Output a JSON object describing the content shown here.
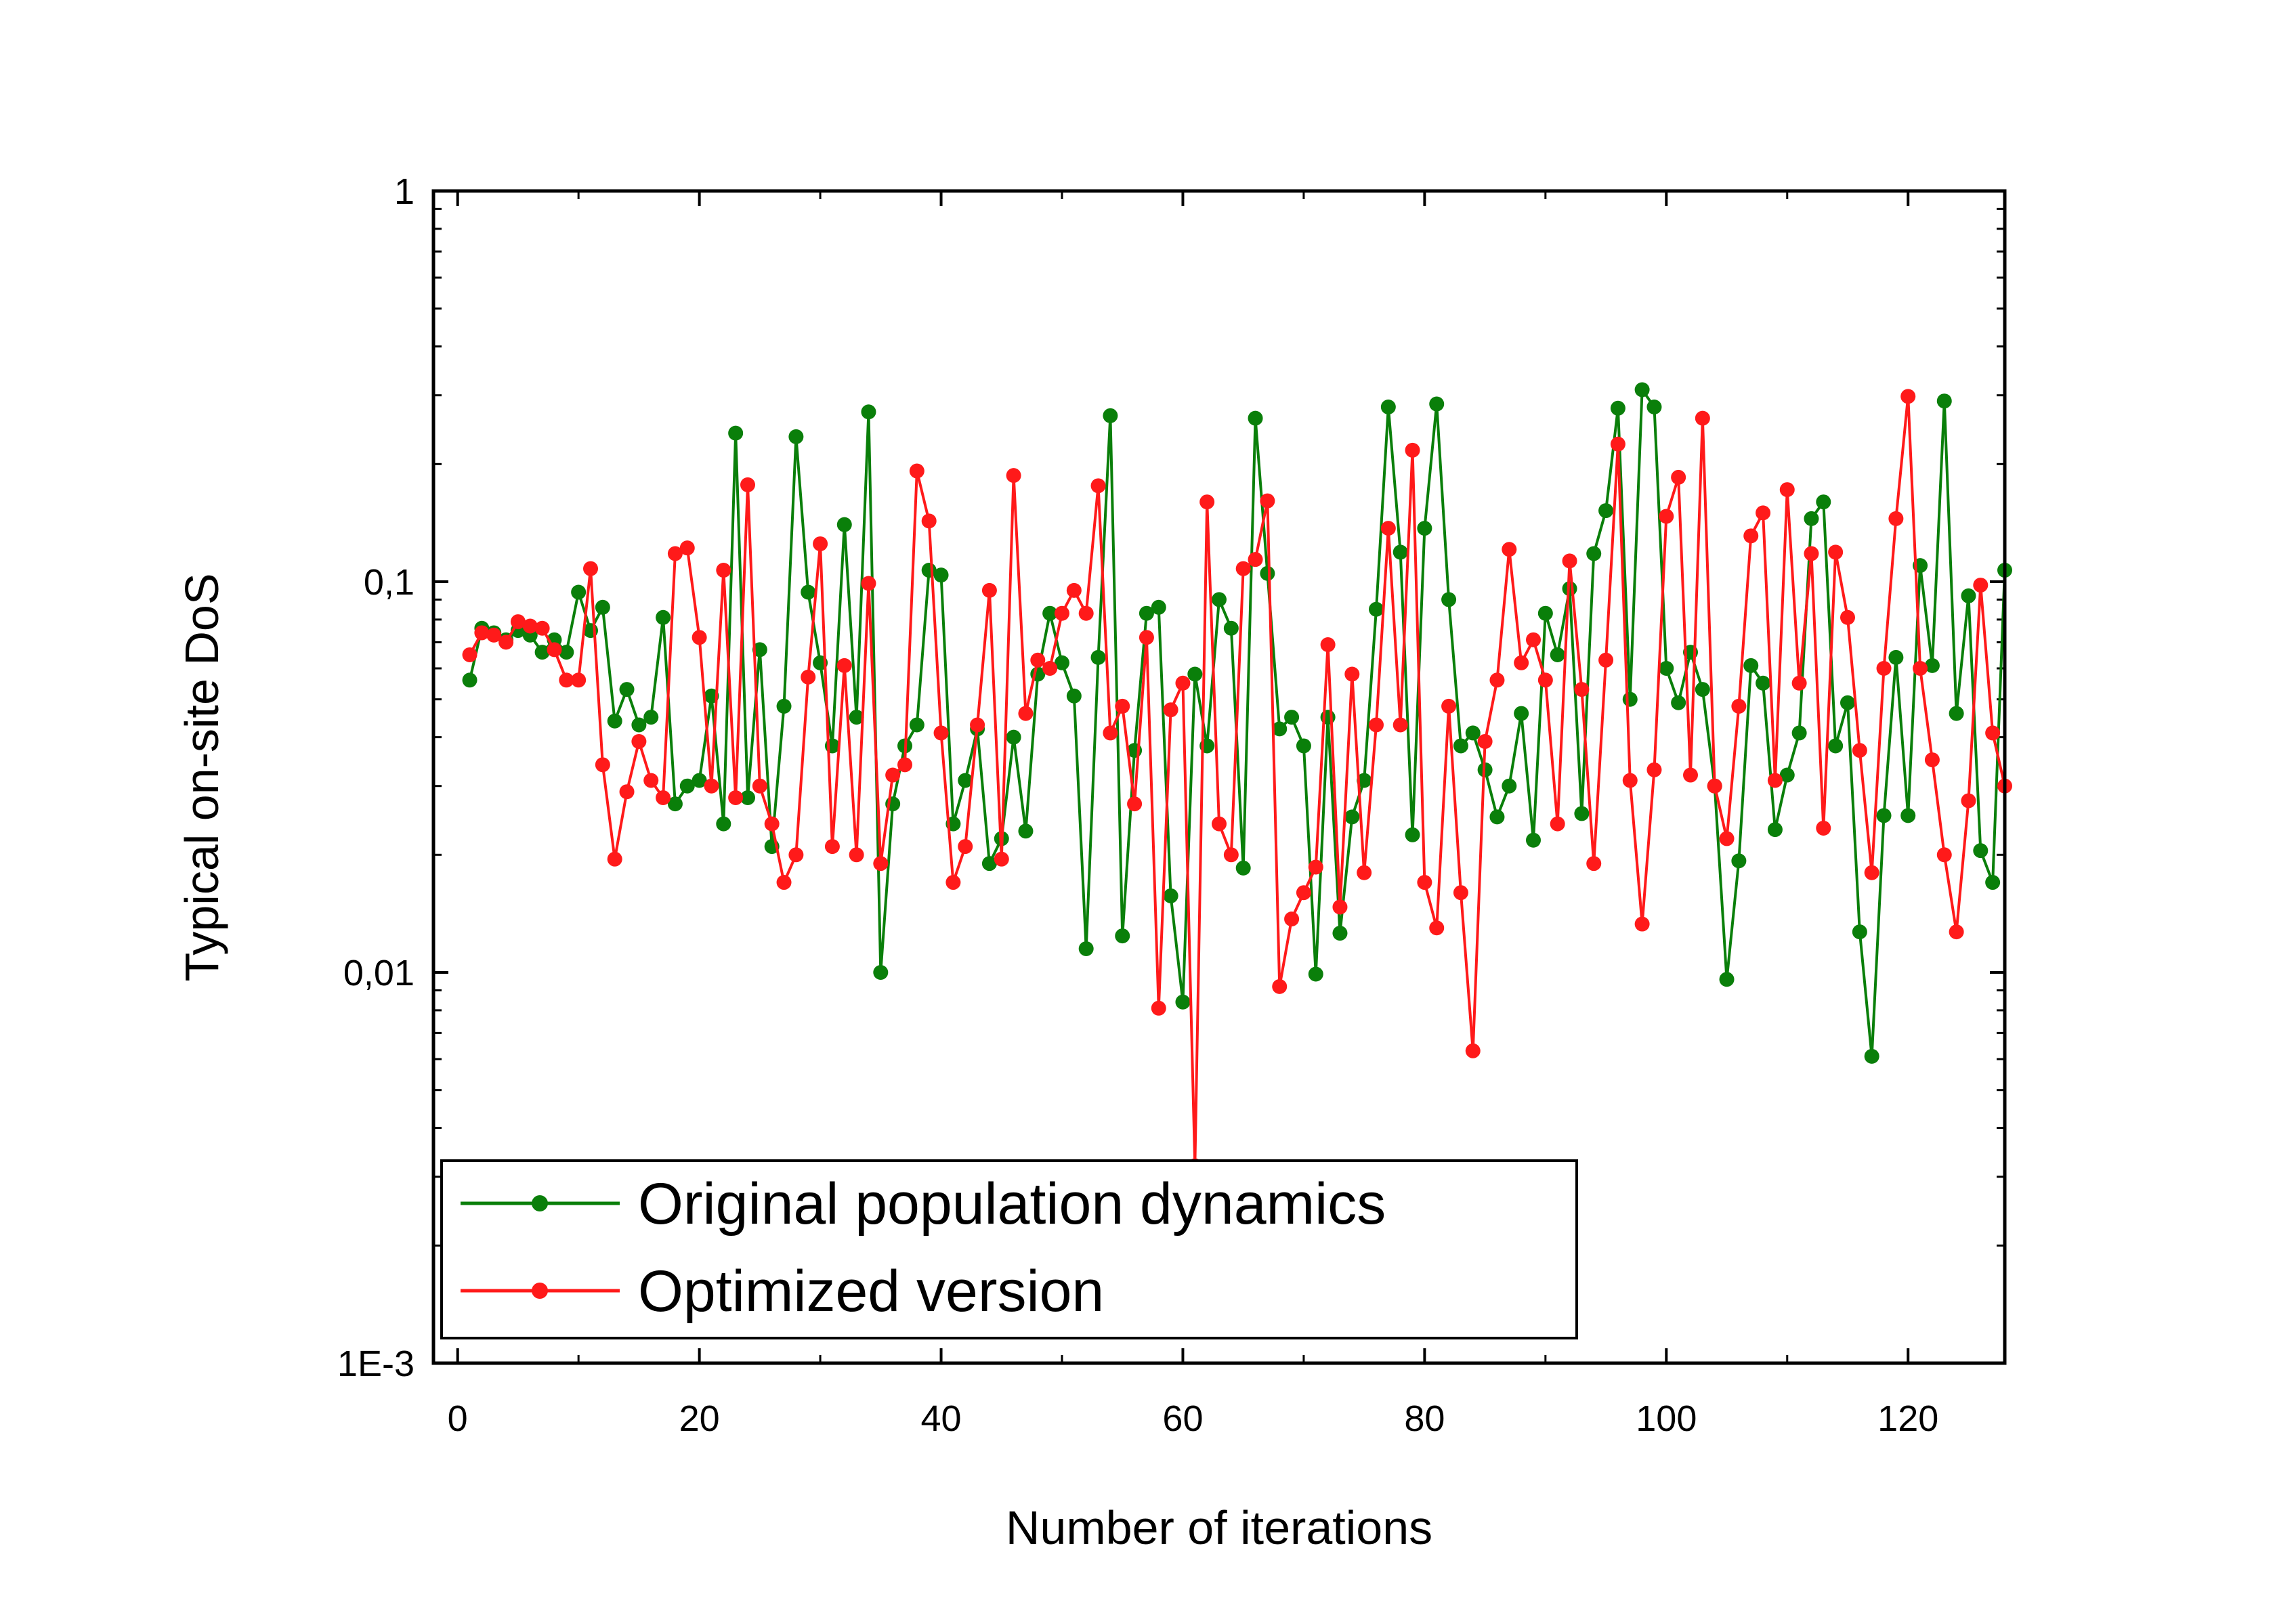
{
  "chart_data": {
    "type": "line",
    "title": "",
    "xlabel": "Number of iterations",
    "ylabel": "Typical on-site DoS",
    "xlim": [
      -2,
      128
    ],
    "ylim": [
      0.001,
      1
    ],
    "yscale": "log",
    "xticks": [
      0,
      20,
      40,
      60,
      80,
      100,
      120
    ],
    "xtick_labels": [
      "0",
      "20",
      "40",
      "60",
      "80",
      "100",
      "120"
    ],
    "yticks": [
      0.001,
      0.01,
      0.1,
      1
    ],
    "ytick_labels": [
      "1E-3",
      "0,01",
      "0,1",
      "1"
    ],
    "grid": false,
    "legend_position": "bottom-left",
    "x": [
      1,
      2,
      3,
      4,
      5,
      6,
      7,
      8,
      9,
      10,
      11,
      12,
      13,
      14,
      15,
      16,
      17,
      18,
      19,
      20,
      21,
      22,
      23,
      24,
      25,
      26,
      27,
      28,
      29,
      30,
      31,
      32,
      33,
      34,
      35,
      36,
      37,
      38,
      39,
      40,
      41,
      42,
      43,
      44,
      45,
      46,
      47,
      48,
      49,
      50,
      51,
      52,
      53,
      54,
      55,
      56,
      57,
      58,
      59,
      60,
      61,
      62,
      63,
      64,
      65,
      66,
      67,
      68,
      69,
      70,
      71,
      72,
      73,
      74,
      75,
      76,
      77,
      78,
      79,
      80,
      81,
      82,
      83,
      84,
      85,
      86,
      87,
      88,
      89,
      90,
      91,
      92,
      93,
      94,
      95,
      96,
      97,
      98,
      99,
      100,
      101,
      102,
      103,
      104,
      105,
      106,
      107,
      108,
      109,
      110,
      111,
      112,
      113,
      114,
      115,
      116,
      117,
      118,
      119,
      120,
      121,
      122,
      123,
      124,
      125,
      126,
      127,
      128
    ],
    "series": [
      {
        "name": "Original population dynamics",
        "color": "#0a7f0a",
        "values": [
          0.056,
          0.076,
          0.074,
          0.071,
          0.075,
          0.073,
          0.066,
          0.071,
          0.066,
          0.094,
          0.075,
          0.086,
          0.044,
          0.053,
          0.043,
          0.045,
          0.081,
          0.027,
          0.03,
          0.031,
          0.051,
          0.024,
          0.24,
          0.028,
          0.067,
          0.021,
          0.048,
          0.235,
          0.094,
          0.062,
          0.038,
          0.14,
          0.045,
          0.272,
          0.01,
          0.027,
          0.038,
          0.043,
          0.107,
          0.104,
          0.024,
          0.031,
          0.042,
          0.019,
          0.022,
          0.04,
          0.023,
          0.058,
          0.083,
          0.062,
          0.051,
          0.0115,
          0.064,
          0.266,
          0.0124,
          0.037,
          0.083,
          0.086,
          0.0157,
          0.0084,
          0.058,
          0.038,
          0.09,
          0.076,
          0.0185,
          0.262,
          0.105,
          0.042,
          0.045,
          0.038,
          0.0099,
          0.045,
          0.0126,
          0.025,
          0.031,
          0.085,
          0.28,
          0.119,
          0.0225,
          0.137,
          0.285,
          0.09,
          0.038,
          0.041,
          0.033,
          0.025,
          0.03,
          0.046,
          0.0218,
          0.083,
          0.065,
          0.096,
          0.0255,
          0.118,
          0.152,
          0.278,
          0.05,
          0.31,
          0.28,
          0.06,
          0.049,
          0.066,
          0.053,
          0.03,
          0.0096,
          0.0193,
          0.061,
          0.055,
          0.0232,
          0.032,
          0.041,
          0.145,
          0.16,
          0.038,
          0.049,
          0.0127,
          0.0061,
          0.0252,
          0.064,
          0.0252,
          0.11,
          0.061,
          0.29,
          0.046,
          0.092,
          0.0205,
          0.017,
          0.107
        ]
      },
      {
        "name": "Optimized version",
        "color": "#ff1a1a",
        "values": [
          0.065,
          0.074,
          0.073,
          0.07,
          0.079,
          0.077,
          0.076,
          0.067,
          0.056,
          0.056,
          0.108,
          0.034,
          0.0195,
          0.029,
          0.039,
          0.031,
          0.028,
          0.118,
          0.122,
          0.072,
          0.03,
          0.107,
          0.028,
          0.177,
          0.03,
          0.024,
          0.017,
          0.02,
          0.057,
          0.125,
          0.021,
          0.061,
          0.02,
          0.099,
          0.019,
          0.032,
          0.034,
          0.192,
          0.143,
          0.041,
          0.017,
          0.021,
          0.043,
          0.095,
          0.0195,
          0.187,
          0.046,
          0.063,
          0.06,
          0.083,
          0.095,
          0.083,
          0.176,
          0.041,
          0.048,
          0.027,
          0.072,
          0.0081,
          0.047,
          0.055,
          0.0032,
          0.16,
          0.024,
          0.02,
          0.108,
          0.114,
          0.161,
          0.0092,
          0.0137,
          0.016,
          0.0186,
          0.069,
          0.0147,
          0.058,
          0.018,
          0.043,
          0.137,
          0.043,
          0.217,
          0.017,
          0.013,
          0.048,
          0.016,
          0.0063,
          0.039,
          0.056,
          0.121,
          0.062,
          0.071,
          0.056,
          0.024,
          0.113,
          0.053,
          0.019,
          0.063,
          0.225,
          0.031,
          0.0133,
          0.033,
          0.147,
          0.185,
          0.032,
          0.262,
          0.03,
          0.022,
          0.048,
          0.131,
          0.15,
          0.031,
          0.172,
          0.055,
          0.118,
          0.0234,
          0.119,
          0.081,
          0.037,
          0.018,
          0.06,
          0.145,
          0.298,
          0.06,
          0.035,
          0.02,
          0.0127,
          0.0275,
          0.098,
          0.041,
          0.03
        ]
      }
    ]
  }
}
